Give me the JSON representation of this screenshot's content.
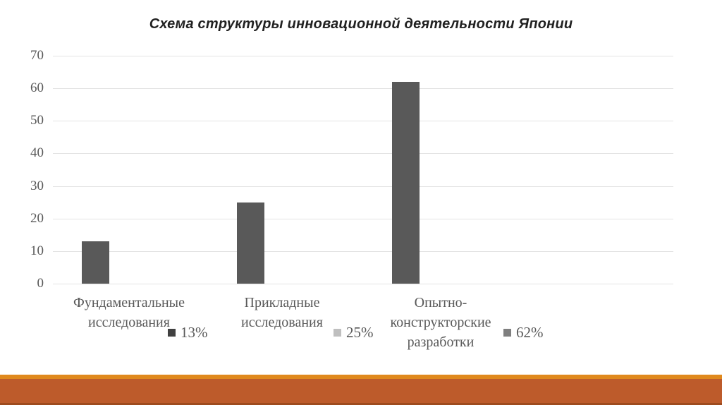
{
  "title": "Схема структуры инновационной деятельности Японии",
  "chart_data": {
    "type": "bar",
    "title": "Схема структуры инновационной деятельности Японии",
    "categories": [
      "Фундаментальные исследования",
      "Прикладные исследования",
      "Опытно-конструкторские разработки"
    ],
    "category_lines": [
      [
        "Фундаментальные",
        "исследования"
      ],
      [
        "Прикладные",
        "исследования"
      ],
      [
        "Опытно-",
        "конструкторские",
        "разработки"
      ]
    ],
    "values": [
      13,
      25,
      62
    ],
    "bar_color": "#595959",
    "ylim": [
      0,
      70
    ],
    "yticks": [
      0,
      10,
      20,
      30,
      40,
      50,
      60,
      70
    ],
    "xlabel": "",
    "ylabel": "",
    "grid": true,
    "legend_position": "bottom-inline",
    "legend": [
      {
        "label": "13%",
        "swatch_color": "#404040"
      },
      {
        "label": "25%",
        "swatch_color": "#bfbfbf"
      },
      {
        "label": "62%",
        "swatch_color": "#7f7f7f"
      }
    ]
  },
  "colors": {
    "background": "#ffffff",
    "title_text": "#212121",
    "axis_text": "#595959",
    "grid": "#e3e3e3",
    "footer_stripe": "#e0891d",
    "footer_band": "#bd5b2b",
    "footer_edge": "#9e4b1e"
  }
}
